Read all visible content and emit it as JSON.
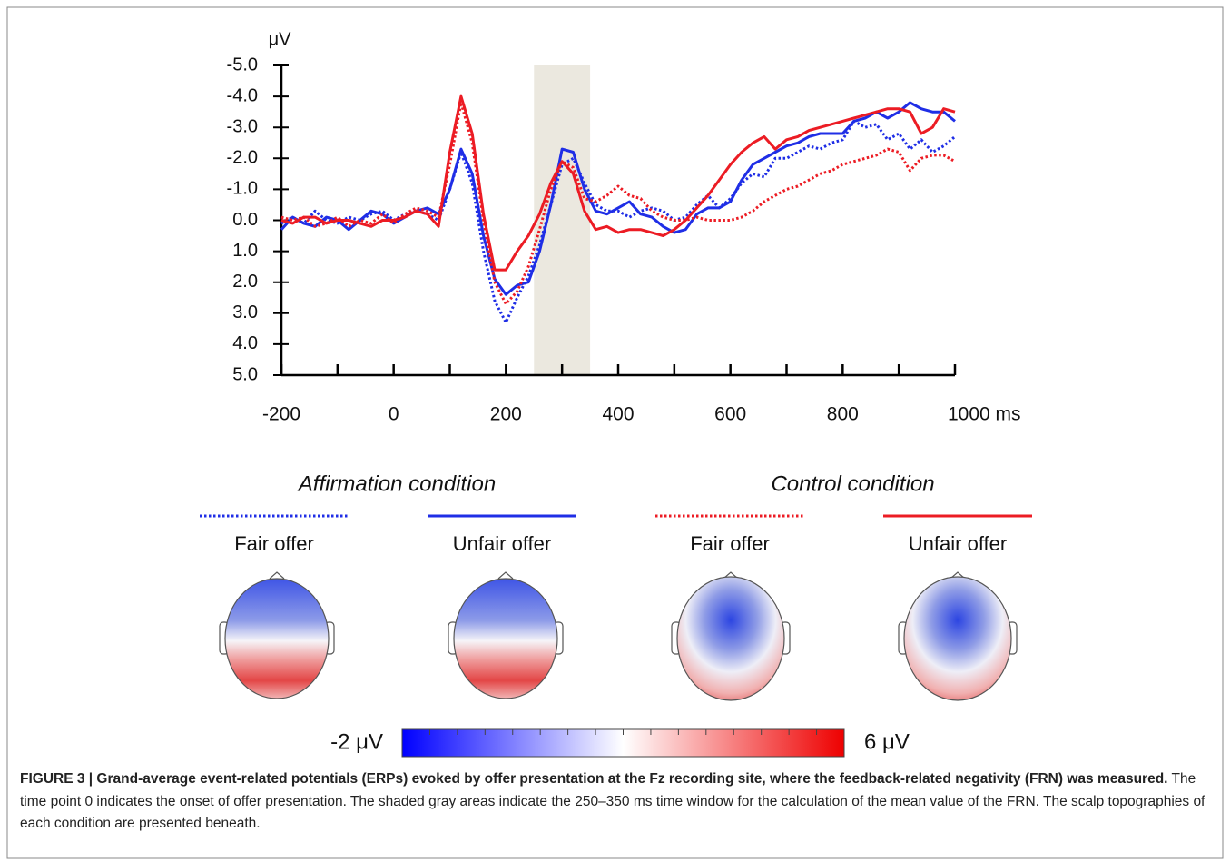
{
  "chart_data": {
    "type": "line",
    "y_label": "μV",
    "xlim": [
      -200,
      1000
    ],
    "ylim": [
      5,
      -5
    ],
    "xticks": [
      {
        "value": -200,
        "label": "-200"
      },
      0,
      200,
      400,
      600,
      800,
      {
        "value": 1000,
        "label": "1000 ms"
      }
    ],
    "xminor_ticks": [
      -100,
      100,
      300,
      500,
      700,
      900
    ],
    "yticks": [
      {
        "value": -5,
        "label": "-5.0"
      },
      {
        "value": -4,
        "label": "-4.0"
      },
      {
        "value": -3,
        "label": "-3.0"
      },
      {
        "value": -2,
        "label": "-2.0"
      },
      {
        "value": -1,
        "label": "-1.0"
      },
      {
        "value": 0,
        "label": "0.0"
      },
      {
        "value": 1,
        "label": "1.0"
      },
      {
        "value": 2,
        "label": "2.0"
      },
      {
        "value": 3,
        "label": "3.0"
      },
      {
        "value": 4,
        "label": "4.0"
      },
      {
        "value": 5,
        "label": "5.0"
      }
    ],
    "shade": [
      250,
      350
    ],
    "shade_color": "#ebe8df",
    "x": [
      -200,
      -180,
      -160,
      -140,
      -120,
      -100,
      -80,
      -60,
      -40,
      -20,
      0,
      20,
      40,
      60,
      80,
      100,
      120,
      140,
      160,
      180,
      200,
      220,
      240,
      260,
      280,
      300,
      320,
      340,
      360,
      380,
      400,
      420,
      440,
      460,
      480,
      500,
      520,
      540,
      560,
      580,
      600,
      620,
      640,
      660,
      680,
      700,
      720,
      740,
      760,
      780,
      800,
      820,
      840,
      860,
      880,
      900,
      920,
      940,
      960,
      980,
      1000
    ],
    "legend_groups": [
      "Affirmation condition",
      "Control condition"
    ],
    "series": [
      {
        "name": "Fair offer",
        "color": "#1f2ee6",
        "dash": "dotted",
        "values": [
          0.1,
          -0.1,
          0.1,
          -0.3,
          0.0,
          0.1,
          -0.1,
          0.0,
          -0.2,
          -0.3,
          0.0,
          -0.2,
          -0.3,
          -0.2,
          0.0,
          -1.0,
          -2.2,
          -1.2,
          1.0,
          2.6,
          3.3,
          2.5,
          1.8,
          0.8,
          -0.5,
          -1.8,
          -2.0,
          -1.2,
          -0.5,
          -0.3,
          -0.3,
          -0.1,
          -0.3,
          -0.4,
          -0.3,
          0.0,
          -0.1,
          -0.5,
          -0.8,
          -0.4,
          -0.7,
          -1.2,
          -1.5,
          -1.4,
          -2.0,
          -2.0,
          -2.2,
          -2.4,
          -2.3,
          -2.5,
          -2.6,
          -3.2,
          -3.0,
          -3.1,
          -2.6,
          -2.8,
          -2.3,
          -2.6,
          -2.2,
          -2.4,
          -2.7
        ]
      },
      {
        "name": "Unfair offer",
        "color": "#1f2ee6",
        "dash": "solid",
        "values": [
          0.3,
          -0.1,
          0.1,
          0.2,
          -0.1,
          0.0,
          0.3,
          0.0,
          -0.3,
          -0.2,
          0.1,
          -0.1,
          -0.3,
          -0.4,
          -0.2,
          -1.0,
          -2.3,
          -1.5,
          0.5,
          1.9,
          2.4,
          2.1,
          2.0,
          1.0,
          -0.5,
          -2.3,
          -2.2,
          -1.0,
          -0.3,
          -0.2,
          -0.4,
          -0.6,
          -0.2,
          -0.1,
          0.2,
          0.4,
          0.3,
          -0.2,
          -0.4,
          -0.4,
          -0.6,
          -1.3,
          -1.8,
          -2.0,
          -2.2,
          -2.4,
          -2.5,
          -2.7,
          -2.8,
          -2.8,
          -2.8,
          -3.2,
          -3.3,
          -3.5,
          -3.3,
          -3.5,
          -3.8,
          -3.6,
          -3.5,
          -3.5,
          -3.2
        ]
      },
      {
        "name": "Fair offer",
        "color": "#ec1c24",
        "dash": "dotted",
        "values": [
          -0.1,
          0.0,
          -0.1,
          0.2,
          0.1,
          -0.1,
          0.2,
          0.0,
          0.1,
          -0.2,
          0.1,
          -0.2,
          -0.4,
          -0.3,
          -0.1,
          -1.8,
          -3.8,
          -2.5,
          0.0,
          2.0,
          2.7,
          2.3,
          1.5,
          0.3,
          -1.0,
          -1.9,
          -1.7,
          -0.7,
          -0.6,
          -0.8,
          -1.1,
          -0.8,
          -0.7,
          -0.3,
          -0.1,
          0.0,
          0.0,
          -0.1,
          0.0,
          0.0,
          0.0,
          -0.1,
          -0.3,
          -0.6,
          -0.8,
          -1.0,
          -1.1,
          -1.3,
          -1.5,
          -1.6,
          -1.8,
          -1.9,
          -2.0,
          -2.1,
          -2.3,
          -2.2,
          -1.6,
          -2.0,
          -2.1,
          -2.1,
          -1.9
        ]
      },
      {
        "name": "Unfair offer",
        "color": "#ec1c24",
        "dash": "solid",
        "values": [
          0.0,
          0.1,
          -0.1,
          -0.1,
          0.1,
          0.0,
          0.0,
          0.1,
          0.2,
          0.0,
          0.0,
          -0.1,
          -0.3,
          -0.2,
          0.2,
          -2.2,
          -4.0,
          -2.8,
          -0.2,
          1.6,
          1.6,
          1.0,
          0.5,
          -0.2,
          -1.2,
          -1.9,
          -1.5,
          -0.3,
          0.3,
          0.2,
          0.4,
          0.3,
          0.3,
          0.4,
          0.5,
          0.3,
          0.0,
          -0.4,
          -0.8,
          -1.3,
          -1.8,
          -2.2,
          -2.5,
          -2.7,
          -2.3,
          -2.6,
          -2.7,
          -2.9,
          -3.0,
          -3.1,
          -3.2,
          -3.3,
          -3.4,
          -3.5,
          -3.6,
          -3.6,
          -3.5,
          -2.8,
          -3.0,
          -3.6,
          -3.5
        ]
      }
    ]
  },
  "colorbar": {
    "ticks": [
      {
        "value": -2,
        "label": "-2 μV"
      },
      {
        "value": 6,
        "label": "6 μV"
      }
    ]
  },
  "caption": {
    "label": "FIGURE 3 | Grand-average event-related potentials (ERPs) evoked by offer presentation at the Fz recording site, where the feedback-related negativity (FRN) was measured.",
    "text": " The time point 0 indicates the onset of offer presentation. The shaded gray areas indicate the 250–350 ms time window for the calculation of the mean value of the FRN. The scalp topographies of each condition are presented beneath."
  }
}
